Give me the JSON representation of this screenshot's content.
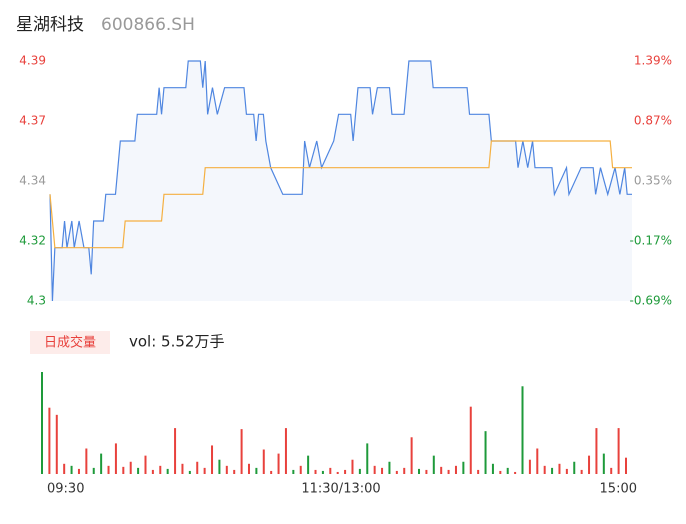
{
  "header": {
    "name": "星湖科技",
    "code": "600866.SH"
  },
  "chart_data": [
    {
      "type": "line",
      "xlim": [
        0,
        240
      ],
      "xticks": [
        {
          "value": 0,
          "label": "09:30"
        },
        {
          "value": 120,
          "label": "11:30/13:00"
        },
        {
          "value": 240,
          "label": "15:00"
        }
      ],
      "ylim": [
        4.3,
        4.39
      ],
      "yticks": [
        4.3,
        {
          "value": 4.3225,
          "label": "4.32"
        },
        {
          "value": 4.345,
          "label": "4.34"
        },
        {
          "value": 4.3675,
          "label": "4.37"
        },
        4.39
      ],
      "y2lim": [
        -0.69,
        1.39
      ],
      "y2ticks": [
        {
          "value": -0.69,
          "label": "-0.69%"
        },
        {
          "value": -0.17,
          "label": "-0.17%"
        },
        {
          "value": 0.35,
          "label": "0.35%"
        },
        {
          "value": 0.87,
          "label": "0.87%"
        },
        {
          "value": 1.39,
          "label": "1.39%"
        }
      ],
      "ytick_colors": [
        "#1e9a3a",
        "#1e9a3a",
        "#999999",
        "#e8413c",
        "#e8413c"
      ],
      "area_color": "#f4f7fc",
      "series": [
        {
          "color": "#4f86e0",
          "x": [
            0,
            1,
            2,
            5,
            6,
            7,
            9,
            10,
            12,
            14,
            16,
            17,
            18,
            22,
            23,
            27,
            28,
            29,
            35,
            36,
            44,
            45,
            46,
            47,
            56,
            57,
            62,
            63,
            64,
            65,
            67,
            69,
            72,
            80,
            81,
            84,
            85,
            86,
            88,
            89,
            91,
            96,
            104,
            105,
            107,
            110,
            112,
            117,
            119,
            124,
            125,
            127,
            132,
            133,
            135,
            140,
            141,
            146,
            148,
            157,
            158,
            172,
            173,
            181,
            182,
            192,
            193,
            195,
            197,
            199,
            200,
            207,
            208,
            213,
            214,
            219,
            224,
            225,
            227,
            230,
            233,
            235,
            237,
            238,
            240
          ],
          "values": [
            4.34,
            4.3,
            4.32,
            4.32,
            4.33,
            4.32,
            4.33,
            4.32,
            4.33,
            4.32,
            4.32,
            4.31,
            4.33,
            4.33,
            4.34,
            4.34,
            4.35,
            4.36,
            4.36,
            4.37,
            4.37,
            4.38,
            4.37,
            4.38,
            4.38,
            4.39,
            4.39,
            4.38,
            4.39,
            4.37,
            4.38,
            4.37,
            4.38,
            4.38,
            4.37,
            4.37,
            4.36,
            4.37,
            4.37,
            4.36,
            4.35,
            4.34,
            4.34,
            4.36,
            4.35,
            4.36,
            4.35,
            4.36,
            4.37,
            4.37,
            4.36,
            4.38,
            4.38,
            4.37,
            4.38,
            4.38,
            4.37,
            4.37,
            4.39,
            4.39,
            4.38,
            4.38,
            4.37,
            4.37,
            4.36,
            4.36,
            4.35,
            4.36,
            4.35,
            4.36,
            4.35,
            4.35,
            4.34,
            4.35,
            4.34,
            4.35,
            4.35,
            4.34,
            4.35,
            4.34,
            4.35,
            4.34,
            4.35,
            4.34,
            4.34
          ]
        },
        {
          "color": "#f5b041",
          "x": [
            0,
            2,
            30,
            31,
            46,
            47,
            63,
            64,
            181,
            182,
            231,
            232,
            240
          ],
          "values": [
            4.34,
            4.32,
            4.32,
            4.33,
            4.33,
            4.34,
            4.34,
            4.35,
            4.35,
            4.36,
            4.36,
            4.35,
            4.35
          ]
        }
      ]
    },
    {
      "type": "bar",
      "label": "日成交量",
      "annotation": "vol: 5.52万手",
      "ylim": [
        0,
        100
      ],
      "series": [
        {
          "color": "#e8413c",
          "values": [
            null,
            65,
            58,
            10,
            null,
            5,
            25,
            null,
            null,
            8,
            30,
            7,
            12,
            null,
            18,
            4,
            8,
            null,
            45,
            10,
            null,
            12,
            6,
            28,
            null,
            8,
            4,
            44,
            10,
            null,
            24,
            3,
            20,
            45,
            null,
            8,
            null,
            4,
            null,
            6,
            2,
            4,
            14,
            null,
            null,
            8,
            6,
            null,
            3,
            6,
            36,
            null,
            4,
            null,
            7,
            4,
            8,
            null,
            66,
            4,
            null,
            null,
            3,
            null,
            2,
            null,
            14,
            25,
            8,
            null,
            10,
            5,
            null,
            4,
            18,
            45,
            null,
            6,
            45,
            16
          ]
        },
        {
          "color": "#1e9a3a",
          "values": [
            100,
            null,
            null,
            null,
            8,
            null,
            null,
            6,
            20,
            null,
            null,
            null,
            null,
            6,
            null,
            null,
            null,
            5,
            null,
            null,
            3,
            null,
            null,
            null,
            14,
            null,
            null,
            null,
            null,
            6,
            null,
            null,
            null,
            null,
            4,
            null,
            18,
            null,
            3,
            null,
            null,
            null,
            null,
            5,
            30,
            null,
            null,
            12,
            null,
            null,
            null,
            5,
            null,
            18,
            null,
            null,
            null,
            12,
            null,
            null,
            42,
            10,
            null,
            6,
            null,
            86,
            null,
            null,
            null,
            6,
            null,
            null,
            12,
            null,
            null,
            null,
            20,
            null,
            null,
            null
          ]
        }
      ]
    }
  ]
}
